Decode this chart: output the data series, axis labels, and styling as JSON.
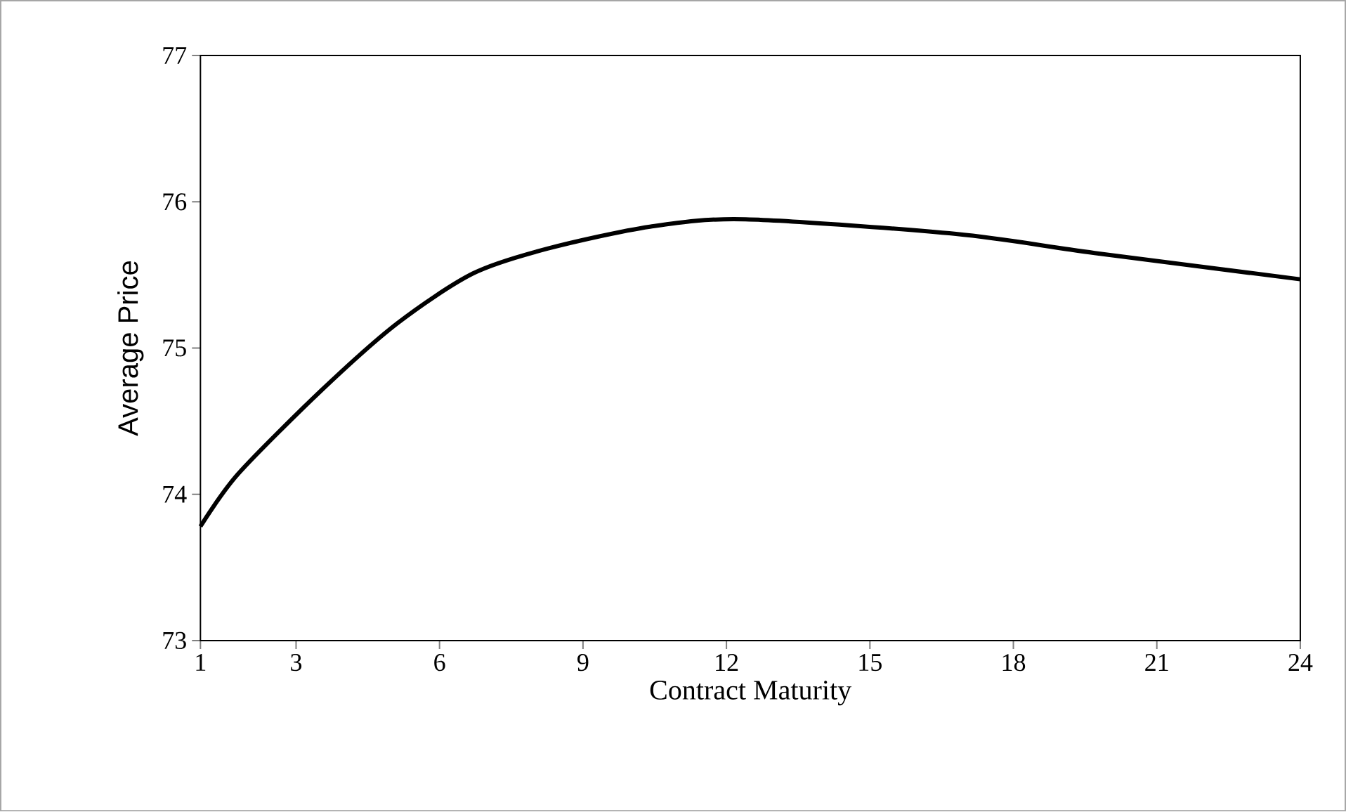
{
  "chart_data": {
    "type": "line",
    "xlabel": "Contract Maturity",
    "ylabel": "Average Price",
    "x": [
      1,
      1.79,
      3.56,
      5.12,
      6.7,
      8.26,
      10.4,
      12.4,
      16.8,
      19.7,
      24
    ],
    "series": [
      {
        "color": "#000000",
        "values": [
          73.78,
          74.14,
          74.72,
          75.17,
          75.51,
          75.68,
          75.83,
          75.88,
          75.78,
          75.65,
          75.47
        ]
      }
    ],
    "xlim": [
      1,
      24
    ],
    "xticks": [
      1,
      3,
      6,
      9,
      12,
      15,
      18,
      21,
      24
    ],
    "ylim": [
      73,
      77
    ],
    "yticks": [
      73,
      74,
      75,
      76,
      77
    ],
    "marker": "none",
    "line_style": "solid"
  }
}
